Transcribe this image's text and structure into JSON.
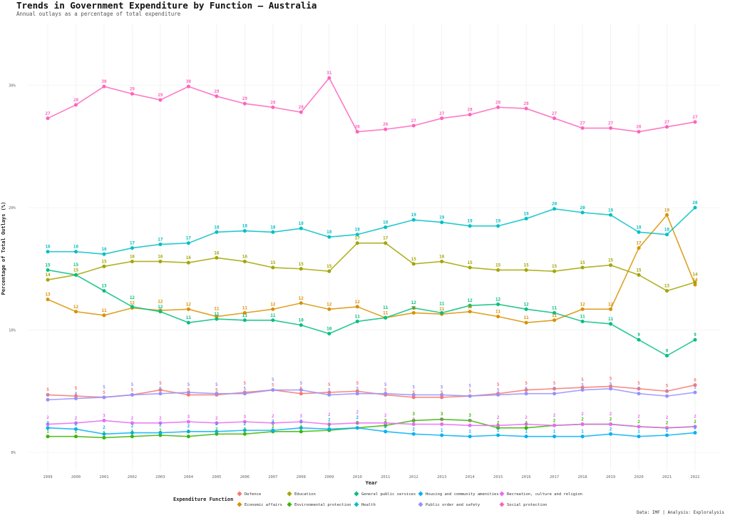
{
  "chart_data": {
    "type": "line",
    "title": "Trends in Government Expenditure by Function — Australia",
    "subtitle": "Annual outlays as a percentage of total expenditure",
    "xlabel": "Year",
    "ylabel": "Percentage of Total Outlays (%)",
    "caption": "Data: IMF | Analysis: Exploralysis",
    "legend_title": "Expenditure Function",
    "legend_position": "bottom",
    "grid": true,
    "ylim": [
      -1.5,
      35
    ],
    "y_ticks": [
      0,
      10,
      20,
      30
    ],
    "y_tick_labels": [
      "0%",
      "10%",
      "20%",
      "30%"
    ],
    "x": [
      1999,
      2000,
      2001,
      2002,
      2003,
      2004,
      2005,
      2006,
      2007,
      2008,
      2009,
      2010,
      2011,
      2012,
      2013,
      2014,
      2015,
      2016,
      2017,
      2018,
      2019,
      2020,
      2021,
      2022
    ],
    "series": [
      {
        "name": "Defence",
        "color": "#F8766D",
        "values": [
          4.7,
          4.6,
          4.5,
          4.7,
          5.1,
          4.7,
          4.7,
          4.9,
          5.1,
          4.8,
          4.9,
          5.0,
          4.7,
          4.5,
          4.5,
          4.6,
          4.8,
          5.1,
          5.2,
          5.3,
          5.4,
          5.2,
          5.0,
          5.5
        ]
      },
      {
        "name": "Economic affairs",
        "color": "#D89000",
        "values": [
          12.5,
          11.5,
          11.2,
          11.8,
          11.6,
          11.7,
          11.1,
          11.4,
          11.7,
          12.2,
          11.7,
          11.9,
          11.0,
          11.4,
          11.3,
          11.5,
          11.1,
          10.6,
          10.8,
          11.7,
          11.7,
          16.7,
          19.4,
          13.7
        ]
      },
      {
        "name": "Education",
        "color": "#A3A500",
        "values": [
          14.1,
          14.5,
          15.2,
          15.6,
          15.6,
          15.5,
          15.9,
          15.6,
          15.1,
          15.0,
          14.8,
          17.1,
          17.1,
          15.4,
          15.6,
          15.1,
          14.9,
          14.9,
          14.8,
          15.1,
          15.3,
          14.5,
          13.2,
          13.9
        ]
      },
      {
        "name": "Environmental protection",
        "color": "#39B600",
        "values": [
          1.3,
          1.3,
          1.2,
          1.3,
          1.4,
          1.3,
          1.5,
          1.5,
          1.7,
          1.7,
          1.8,
          2.0,
          2.2,
          2.6,
          2.7,
          2.6,
          2.0,
          2.0,
          2.2,
          2.3,
          2.3,
          2.1,
          2.0,
          2.1
        ]
      },
      {
        "name": "General public services",
        "color": "#00BF7D",
        "values": [
          14.9,
          14.5,
          13.2,
          11.9,
          11.5,
          10.6,
          10.9,
          10.8,
          10.8,
          10.4,
          9.7,
          10.7,
          11.0,
          11.8,
          11.4,
          12.0,
          12.1,
          11.7,
          11.4,
          10.7,
          10.5,
          9.2,
          7.9,
          9.2
        ]
      },
      {
        "name": "Health",
        "color": "#00BFC4",
        "values": [
          16.4,
          16.4,
          16.2,
          16.7,
          17.0,
          17.1,
          18.0,
          18.1,
          18.0,
          18.3,
          17.6,
          17.8,
          18.4,
          19.0,
          18.8,
          18.5,
          18.5,
          19.1,
          19.9,
          19.6,
          19.4,
          18.0,
          17.8,
          20.0
        ]
      },
      {
        "name": "Housing and community amenities",
        "color": "#00B0F6",
        "values": [
          2.0,
          1.9,
          1.5,
          1.6,
          1.6,
          1.7,
          1.7,
          1.8,
          1.8,
          2.0,
          1.9,
          2.0,
          1.7,
          1.5,
          1.4,
          1.3,
          1.4,
          1.3,
          1.3,
          1.3,
          1.5,
          1.3,
          1.4,
          1.6
        ]
      },
      {
        "name": "Public order and safety",
        "color": "#9590FF",
        "values": [
          4.3,
          4.4,
          4.5,
          4.7,
          4.8,
          4.9,
          4.8,
          4.8,
          5.1,
          5.1,
          4.7,
          4.8,
          4.8,
          4.7,
          4.7,
          4.6,
          4.7,
          4.8,
          4.8,
          5.1,
          5.2,
          4.8,
          4.6,
          4.9
        ]
      },
      {
        "name": "Recreation, culture and religion",
        "color": "#E76BF3",
        "values": [
          2.3,
          2.4,
          2.6,
          2.4,
          2.4,
          2.5,
          2.4,
          2.5,
          2.4,
          2.5,
          2.3,
          2.4,
          2.4,
          2.3,
          2.3,
          2.2,
          2.2,
          2.3,
          2.2,
          2.3,
          2.3,
          2.1,
          2.0,
          2.1
        ]
      },
      {
        "name": "Social protection",
        "color": "#FF62BC",
        "values": [
          27.3,
          28.4,
          29.9,
          29.3,
          28.8,
          29.9,
          29.1,
          28.5,
          28.2,
          27.8,
          30.6,
          26.2,
          26.4,
          26.7,
          27.3,
          27.6,
          28.2,
          28.1,
          27.3,
          26.5,
          26.5,
          26.2,
          26.6,
          27.0
        ]
      }
    ]
  }
}
